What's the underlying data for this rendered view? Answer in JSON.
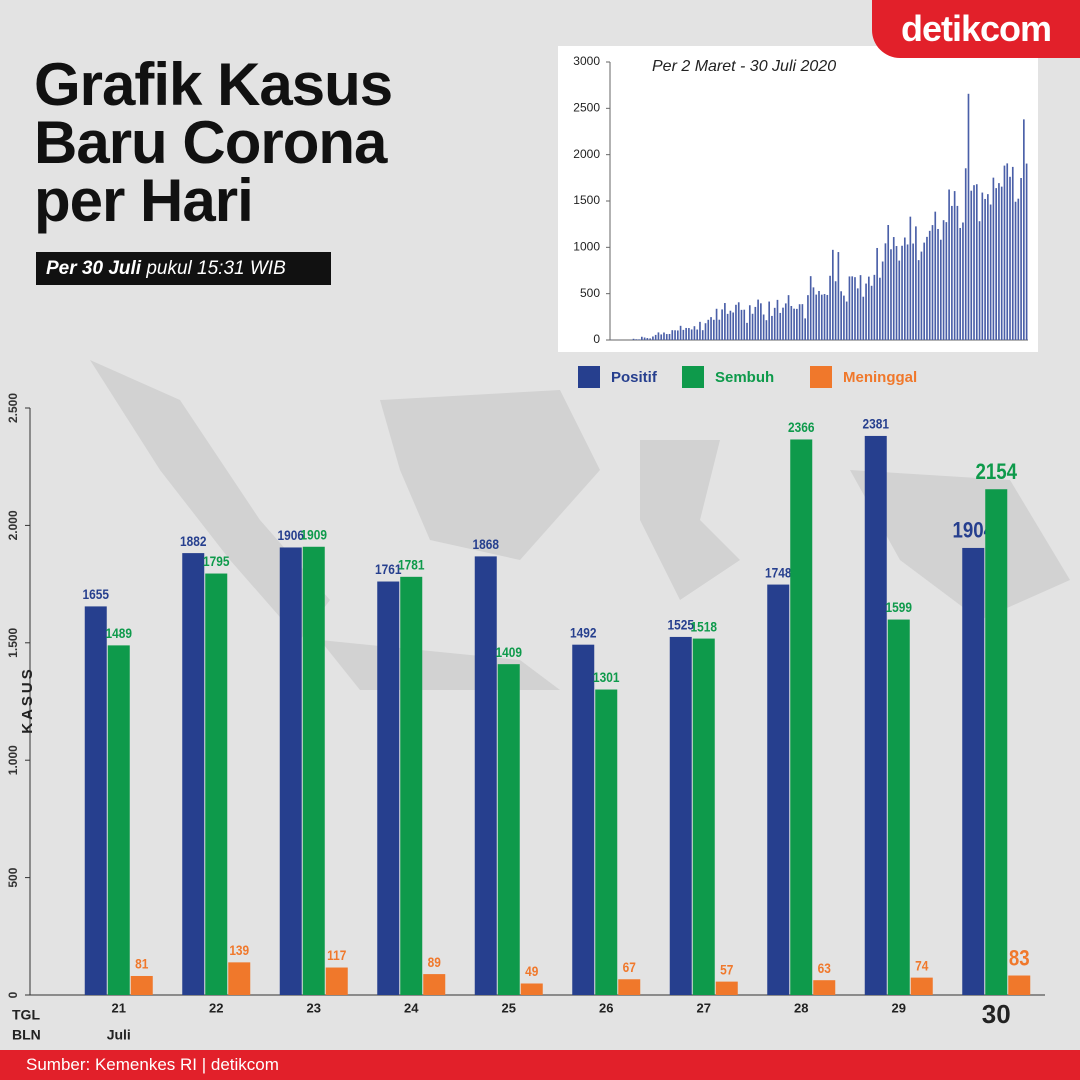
{
  "header": {
    "title": "Grafik Kasus Baru Corona per Hari",
    "date_bold": "Per 30 Juli",
    "date_rest": "pukul 15:31 WIB",
    "logo": "detikcom"
  },
  "footer": "Sumber: Kemenkes RI | detikcom",
  "chart_data": [
    {
      "type": "bar",
      "y_label": "KASUS",
      "x_label": "TGL",
      "x2_label": "BLN",
      "month": "Juli",
      "categories": [
        "21",
        "22",
        "23",
        "24",
        "25",
        "26",
        "27",
        "28",
        "29",
        "30"
      ],
      "series": [
        {
          "name": "Positif",
          "color": "#263f8e",
          "values": [
            1655,
            1882,
            1906,
            1761,
            1868,
            1492,
            1525,
            1748,
            2381,
            1904
          ]
        },
        {
          "name": "Sembuh",
          "color": "#0e9a4b",
          "values": [
            1489,
            1795,
            1909,
            1781,
            1409,
            1301,
            1518,
            2366,
            1599,
            2154
          ]
        },
        {
          "name": "Meninggal",
          "color": "#f0782b",
          "values": [
            81,
            139,
            117,
            89,
            49,
            67,
            57,
            63,
            74,
            83
          ]
        }
      ],
      "ylim": [
        0,
        2500
      ],
      "yticks": [
        0,
        500,
        {
          "value": 1000,
          "label": "1.000"
        },
        {
          "value": 1500,
          "label": "1.500"
        },
        {
          "value": 2000,
          "label": "2.000"
        },
        {
          "value": 2500,
          "label": "2.500"
        }
      ]
    },
    {
      "type": "bar",
      "subtitle": "Per 2 Maret - 30 Juli 2020",
      "color": "#4a5fa8",
      "values": [
        2,
        0,
        0,
        2,
        0,
        0,
        0,
        2,
        13,
        8,
        7,
        35,
        27,
        21,
        17,
        38,
        55,
        82,
        60,
        81,
        64,
        65,
        106,
        105,
        103,
        153,
        109,
        130,
        129,
        114,
        149,
        113,
        196,
        106,
        181,
        218,
        247,
        218,
        337,
        219,
        330,
        399,
        282,
        316,
        297,
        380,
        407,
        325,
        327,
        185,
        375,
        283,
        357,
        436,
        396,
        275,
        214,
        415,
        260,
        347,
        433,
        292,
        349,
        395,
        484,
        367,
        338,
        336,
        386,
        387,
        233,
        484,
        689,
        568,
        490,
        529,
        489,
        496,
        486,
        693,
        973,
        634,
        949,
        526,
        479,
        415,
        686,
        687,
        678,
        557,
        700,
        467,
        609,
        684,
        585,
        703,
        993,
        672,
        847,
        1043,
        1241,
        979,
        1111,
        1014,
        857,
        1017,
        1106,
        1031,
        1331,
        1041,
        1226,
        862,
        954,
        1051,
        1113,
        1178,
        1240,
        1385,
        1198,
        1082,
        1293,
        1272,
        1624,
        1447,
        1607,
        1447,
        1209,
        1268,
        1853,
        2657,
        1611,
        1671,
        1681,
        1282,
        1591,
        1522,
        1574,
        1462,
        1752,
        1639,
        1693,
        1655,
        1882,
        1906,
        1761,
        1868,
        1492,
        1525,
        1748,
        2381,
        1904
      ],
      "ylim": [
        0,
        3000
      ],
      "yticks": [
        0,
        500,
        1000,
        1500,
        2000,
        2500,
        3000
      ]
    }
  ]
}
